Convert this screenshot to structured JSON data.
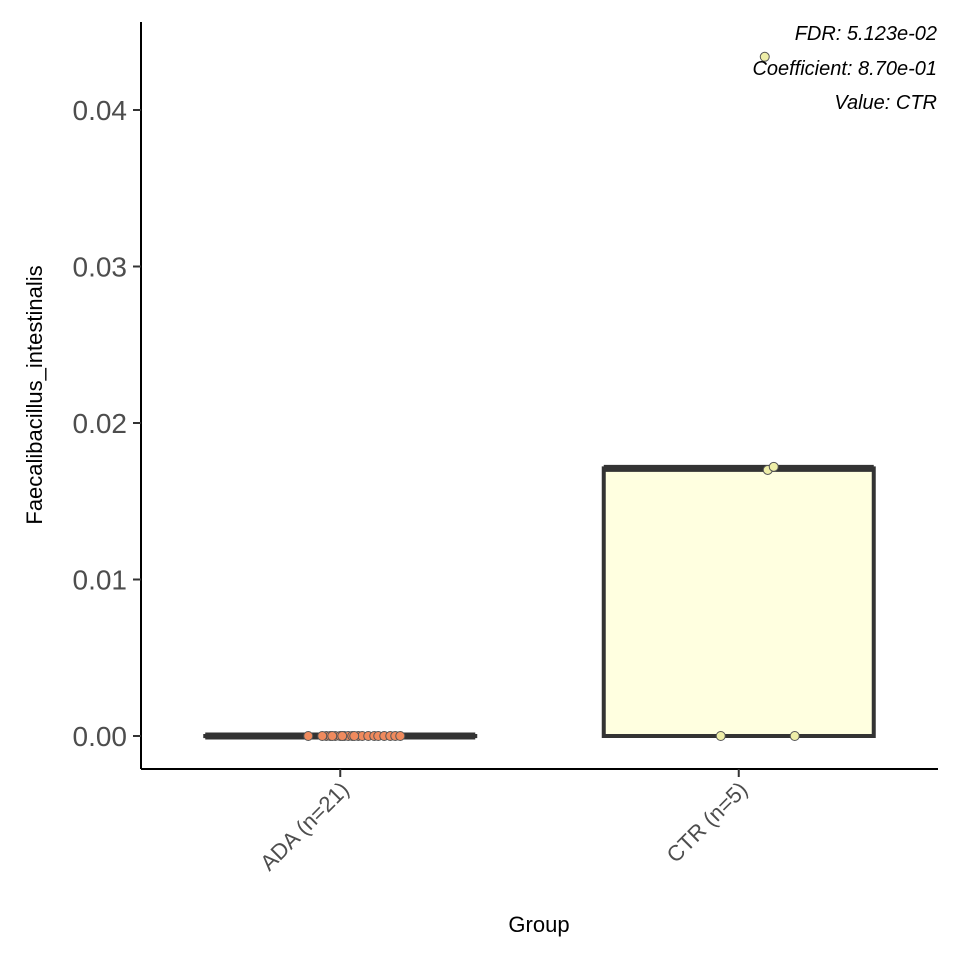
{
  "chart_data": {
    "type": "box",
    "xlabel": "Group",
    "ylabel": "Faecalibacillus_intestinalis",
    "ylim": [
      -0.0021,
      0.0455
    ],
    "yticks": [
      0.0,
      0.01,
      0.02,
      0.03,
      0.04
    ],
    "ytick_labels": [
      "0.00",
      "0.01",
      "0.02",
      "0.03",
      "0.04"
    ],
    "grid": false,
    "legend": "none",
    "categories": [
      "ADA (n=21)",
      "CTR (n=5)"
    ],
    "groups": [
      {
        "label": "ADA (n=21)",
        "fill": "#f46d43",
        "point_fill": "#f08a5d",
        "q1": 0.0,
        "median": 0.0,
        "q3": 0.0,
        "points": [
          0,
          0,
          0,
          0,
          0,
          0,
          0,
          0,
          0,
          0,
          0,
          0,
          0,
          0,
          0,
          0,
          0,
          0,
          0,
          0,
          0
        ]
      },
      {
        "label": "CTR (n=5)",
        "fill": "#ffffe0",
        "point_fill": "#eeeea8",
        "q1": 0.0,
        "median": 0.0171,
        "q3": 0.0171,
        "points": [
          0.0,
          0.0,
          0.017,
          0.0172,
          0.0434
        ]
      }
    ],
    "annotations": [
      "FDR: 5.123e-02",
      "Coefficient: 8.70e-01",
      "Value: CTR"
    ]
  }
}
